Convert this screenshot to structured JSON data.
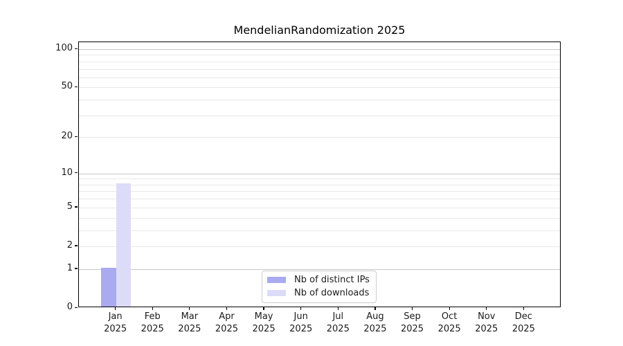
{
  "title": "MendelianRandomization 2025",
  "chart_data": {
    "type": "bar",
    "title": "MendelianRandomization 2025",
    "categories": [
      "Jan",
      "Feb",
      "Mar",
      "Apr",
      "May",
      "Jun",
      "Jul",
      "Aug",
      "Sep",
      "Oct",
      "Nov",
      "Dec"
    ],
    "x_year_label": "2025",
    "series": [
      {
        "name": "Nb of distinct IPs",
        "color": "#aaaaf0",
        "values": [
          1,
          0,
          0,
          0,
          0,
          0,
          0,
          0,
          0,
          0,
          0,
          0
        ]
      },
      {
        "name": "Nb of downloads",
        "color": "#dcdcf8",
        "values": [
          8,
          0,
          0,
          0,
          0,
          0,
          0,
          0,
          0,
          0,
          0,
          0
        ]
      }
    ],
    "yscale": "log1p",
    "ylim": [
      0,
      113
    ],
    "y_tick_values": [
      0,
      1,
      2,
      5,
      10,
      20,
      50,
      100
    ],
    "y_tick_labels": [
      "0",
      "1",
      "2",
      "5",
      "10",
      "20",
      "50",
      "100"
    ],
    "y_major_grid_values": [
      1,
      10,
      100
    ],
    "y_minor_grid_values": [
      2,
      3,
      4,
      5,
      6,
      7,
      8,
      9,
      20,
      30,
      40,
      50,
      60,
      70,
      80,
      90
    ],
    "grid": "horizontal",
    "legend_position": "lower center",
    "colors": {
      "axis": "#000000",
      "text": "#1a1a1a",
      "major_grid": "#c6c6c6",
      "minor_grid": "#e8e8e8",
      "legend_border": "#cccccc",
      "background": "#ffffff"
    }
  }
}
